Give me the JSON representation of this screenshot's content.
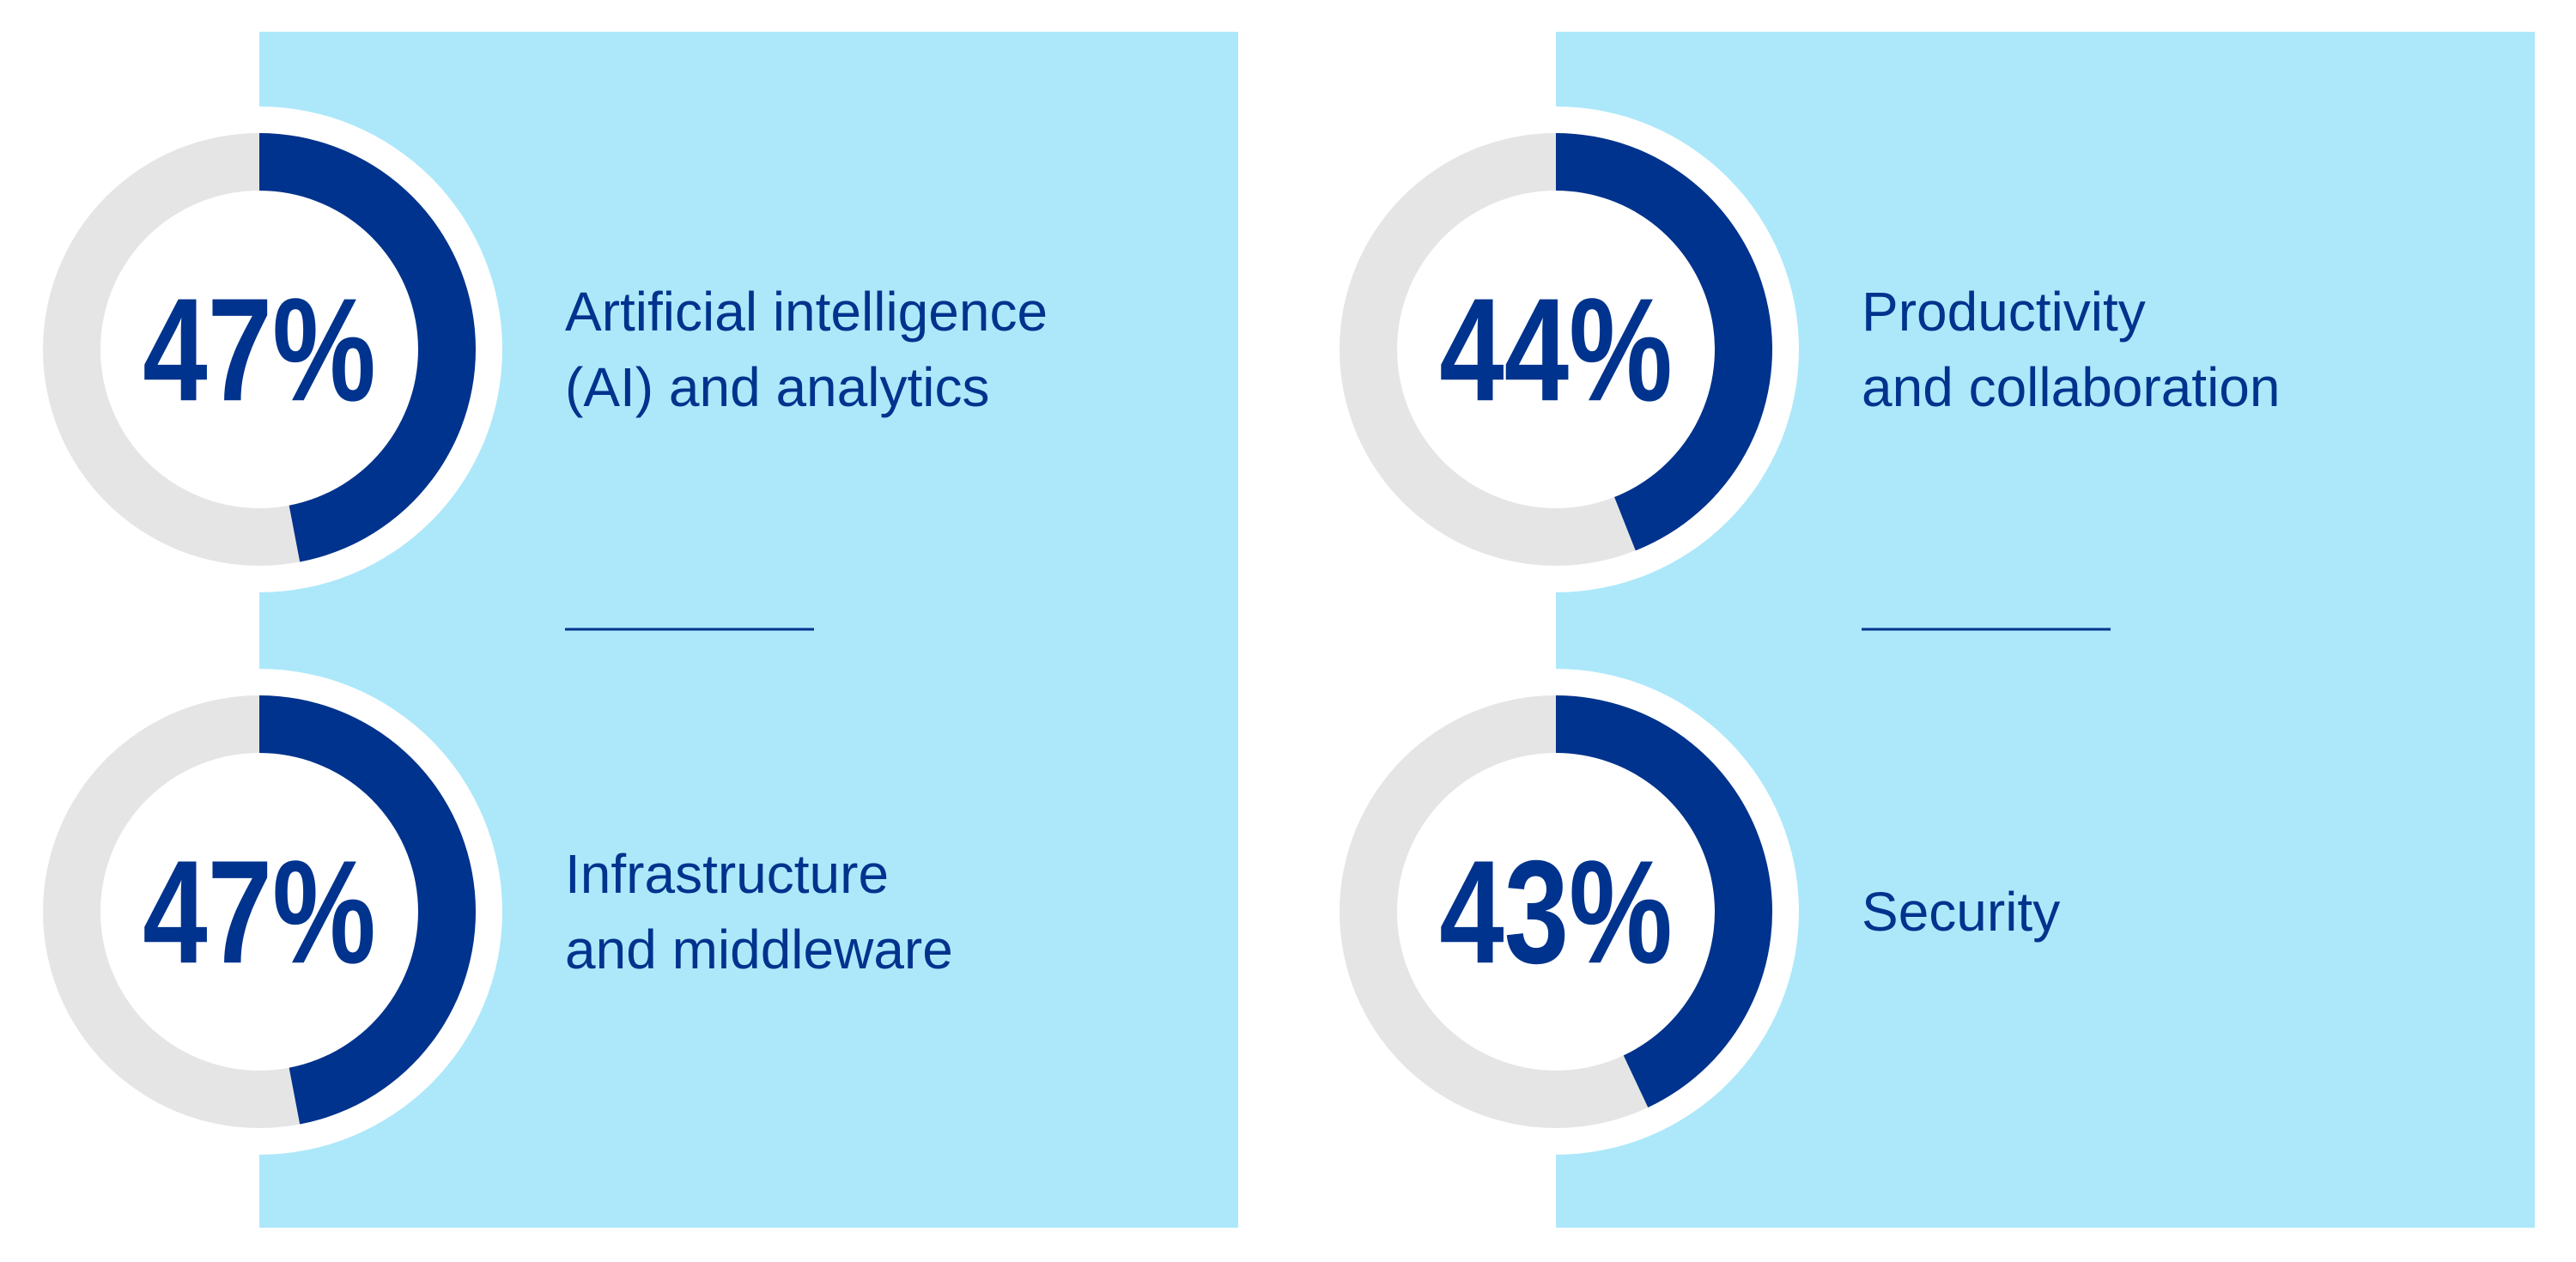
{
  "colors": {
    "panel": "#ACE8FA",
    "arc": "#00338D",
    "track": "#E5E5E5",
    "ring_background": "#FFFFFF",
    "text": "#00338D",
    "divider": "#00338D"
  },
  "chart_data": [
    {
      "type": "pie",
      "style": "donut",
      "value": 47,
      "value_label": "47%",
      "label_lines": [
        "Artificial intelligence",
        "(AI) and analytics"
      ]
    },
    {
      "type": "pie",
      "style": "donut",
      "value": 47,
      "value_label": "47%",
      "label_lines": [
        "Infrastructure",
        "and middleware"
      ]
    },
    {
      "type": "pie",
      "style": "donut",
      "value": 44,
      "value_label": "44%",
      "label_lines": [
        "Productivity",
        "and collaboration"
      ]
    },
    {
      "type": "pie",
      "style": "donut",
      "value": 43,
      "value_label": "43%",
      "label_lines": [
        "Security"
      ]
    }
  ]
}
